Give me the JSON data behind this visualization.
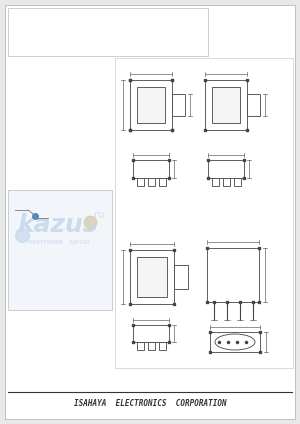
{
  "bg_color": "#e8e8e8",
  "page_bg": "#ffffff",
  "dark_line": "#444444",
  "dim_line": "#666666",
  "footer_text": "ISAHAYA  ELECTRONICS  CORPORATION",
  "footer_fontsize": 5.5,
  "wm_color": "#c5d8ec",
  "wm_text": "kazus",
  "wm_sub": "ЭЛЕКТРОННЫЙ  ПОРТАЛ",
  "wm_ru": ".ru"
}
